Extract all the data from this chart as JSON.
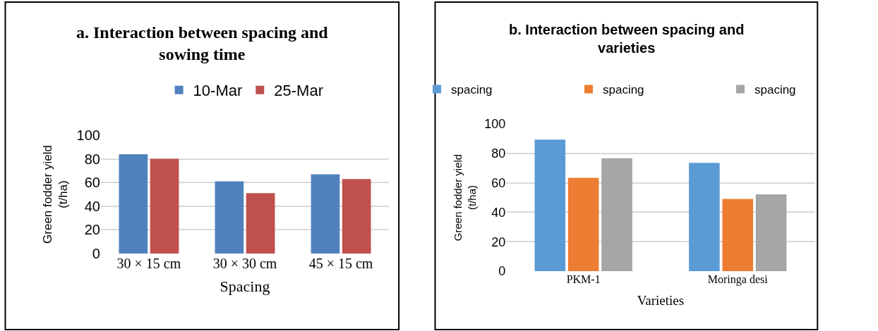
{
  "chart_data": [
    {
      "type": "bar",
      "title": "a. Interaction between spacing and sowing time",
      "xlabel": "Spacing",
      "ylabel": "Green fodder yield (t/ha)",
      "categories": [
        "30 × 15 cm",
        "30 × 30 cm",
        "45 × 15 cm"
      ],
      "series": [
        {
          "name": "10-Mar",
          "color": "#4f81bd",
          "values": [
            84,
            61,
            67
          ]
        },
        {
          "name": "25-Mar",
          "color": "#c0504d",
          "values": [
            80,
            51,
            63
          ]
        }
      ],
      "ylim": [
        0,
        100
      ],
      "yticks": [
        0,
        20,
        40,
        60,
        80,
        100
      ],
      "grid": "y",
      "legend": "top"
    },
    {
      "type": "bar",
      "title": "b. Interaction between spacing and varieties",
      "xlabel": "Varieties",
      "ylabel": "Green fodder yield (t/ha)",
      "categories": [
        "PKM-1",
        "Moringa desi"
      ],
      "series": [
        {
          "name": "spacing",
          "color": "#5b9bd5",
          "values": [
            89.3,
            73.6
          ]
        },
        {
          "name": "spacing",
          "color": "#ed7d31",
          "values": [
            63.4,
            49.1
          ]
        },
        {
          "name": "spacing",
          "color": "#a5a5a5",
          "values": [
            76.7,
            52.1
          ]
        }
      ],
      "ylim": [
        0,
        100
      ],
      "yticks": [
        0,
        20,
        40,
        60,
        80,
        100
      ],
      "grid": "y",
      "legend": "top"
    }
  ]
}
